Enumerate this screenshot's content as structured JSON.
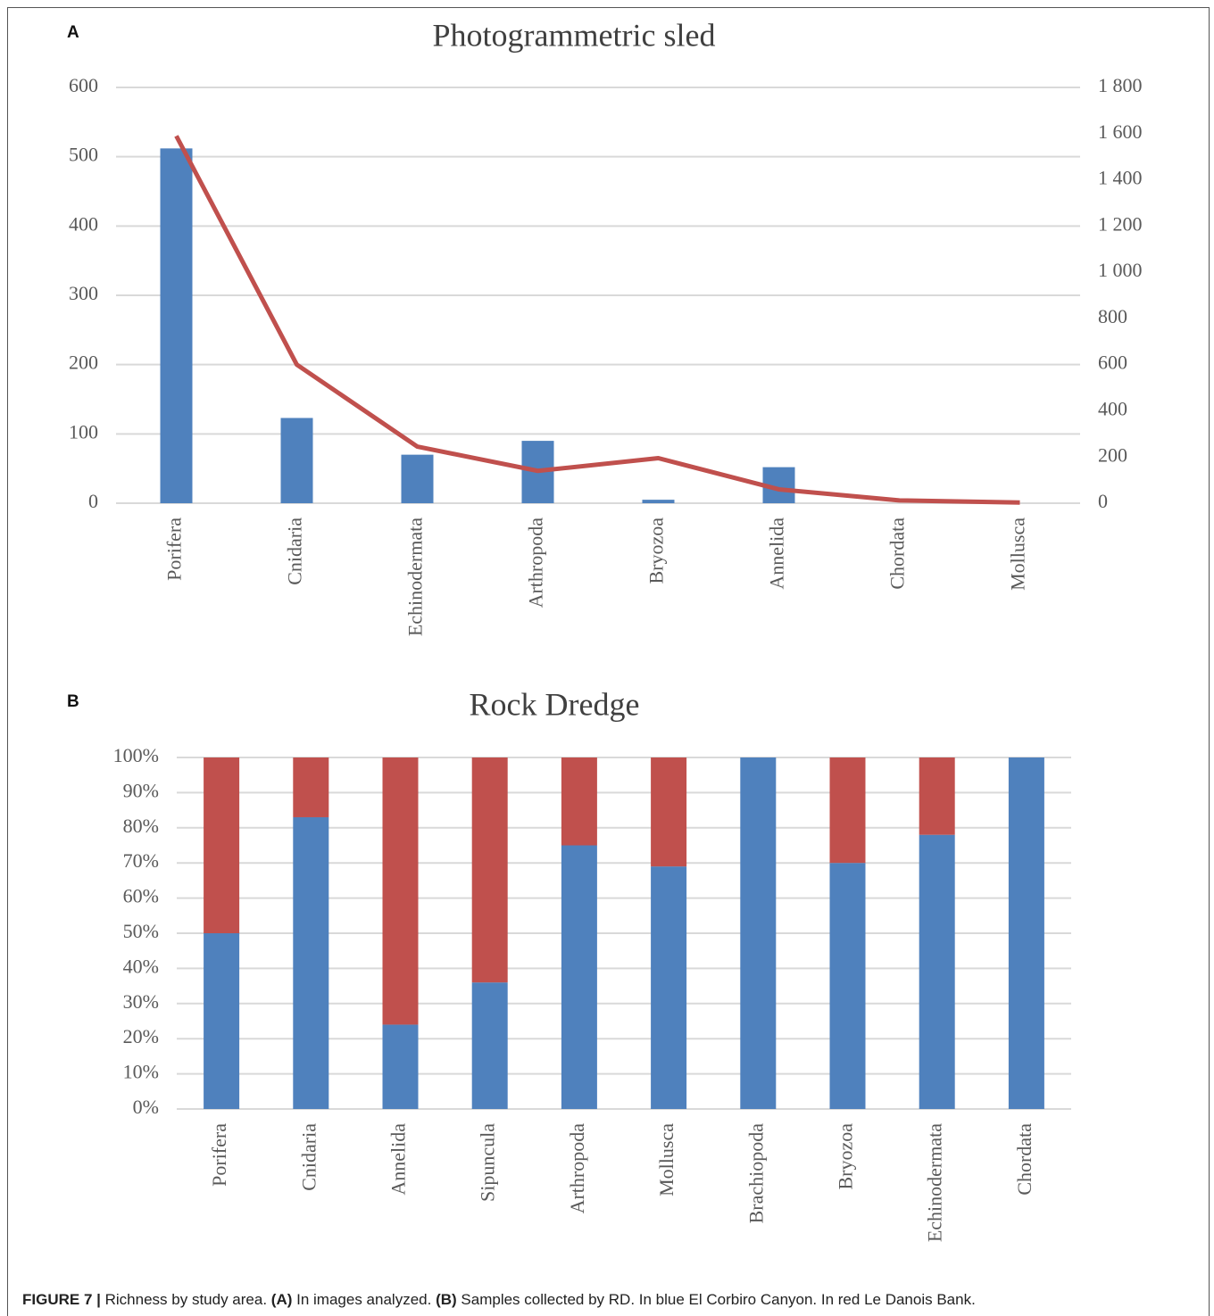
{
  "chart_data": [
    {
      "type": "bar",
      "panel": "A",
      "title": "Photogrammetric sled",
      "categories": [
        "Porifera",
        "Cnidaria",
        "Echinodermata",
        "Arthropoda",
        "Bryozoa",
        "Annelida",
        "Chordata",
        "Mollusca"
      ],
      "series": [
        {
          "type": "bar",
          "color": "#4f81bd",
          "values": [
            512,
            123,
            70,
            90,
            5,
            52,
            0,
            0
          ]
        },
        {
          "type": "line",
          "axis": "y2",
          "color": "#c0504d",
          "values": [
            1590,
            600,
            245,
            140,
            195,
            60,
            12,
            3
          ]
        }
      ],
      "ylim": [
        0,
        600
      ],
      "yticks": [
        0,
        100,
        200,
        300,
        400,
        500,
        600
      ],
      "y2lim": [
        0,
        1800
      ],
      "y2ticks": [
        0,
        200,
        400,
        600,
        800,
        {
          "value": 1000,
          "label": "1 000"
        },
        {
          "value": 1200,
          "label": "1 200"
        },
        {
          "value": 1400,
          "label": "1 400"
        },
        {
          "value": 1600,
          "label": "1 600"
        },
        {
          "value": 1800,
          "label": "1 800"
        }
      ],
      "grid": true
    },
    {
      "type": "stacked_bar",
      "panel": "B",
      "title": "Rock Dredge",
      "categories": [
        "Porifera",
        "Cnidaria",
        "Annelida",
        "Sipuncula",
        "Arthropoda",
        "Mollusca",
        "Brachiopoda",
        "Bryozoa",
        "Echinodermata",
        "Chordata"
      ],
      "series": [
        {
          "color": "#4f81bd",
          "values": [
            50,
            83,
            24,
            36,
            75,
            69,
            100,
            70,
            78,
            100
          ]
        },
        {
          "color": "#c0504d",
          "values": [
            50,
            17,
            76,
            64,
            25,
            31,
            0,
            30,
            22,
            0
          ]
        }
      ],
      "ylim": [
        0,
        100
      ],
      "yticks": [
        {
          "value": 0,
          "label": "0%"
        },
        {
          "value": 10,
          "label": "10%"
        },
        {
          "value": 20,
          "label": "20%"
        },
        {
          "value": 30,
          "label": "30%"
        },
        {
          "value": 40,
          "label": "40%"
        },
        {
          "value": 50,
          "label": "50%"
        },
        {
          "value": 60,
          "label": "60%"
        },
        {
          "value": 70,
          "label": "70%"
        },
        {
          "value": 80,
          "label": "80%"
        },
        {
          "value": 90,
          "label": "90%"
        },
        {
          "value": 100,
          "label": "100%"
        }
      ],
      "grid": true
    }
  ],
  "caption": [
    "FIGURE 7 |",
    "Richness by study area.",
    "(A)",
    "In images analyzed.",
    "(B)",
    "Samples collected by RD. In blue El Corbiro Canyon. In red Le Danois Bank."
  ]
}
